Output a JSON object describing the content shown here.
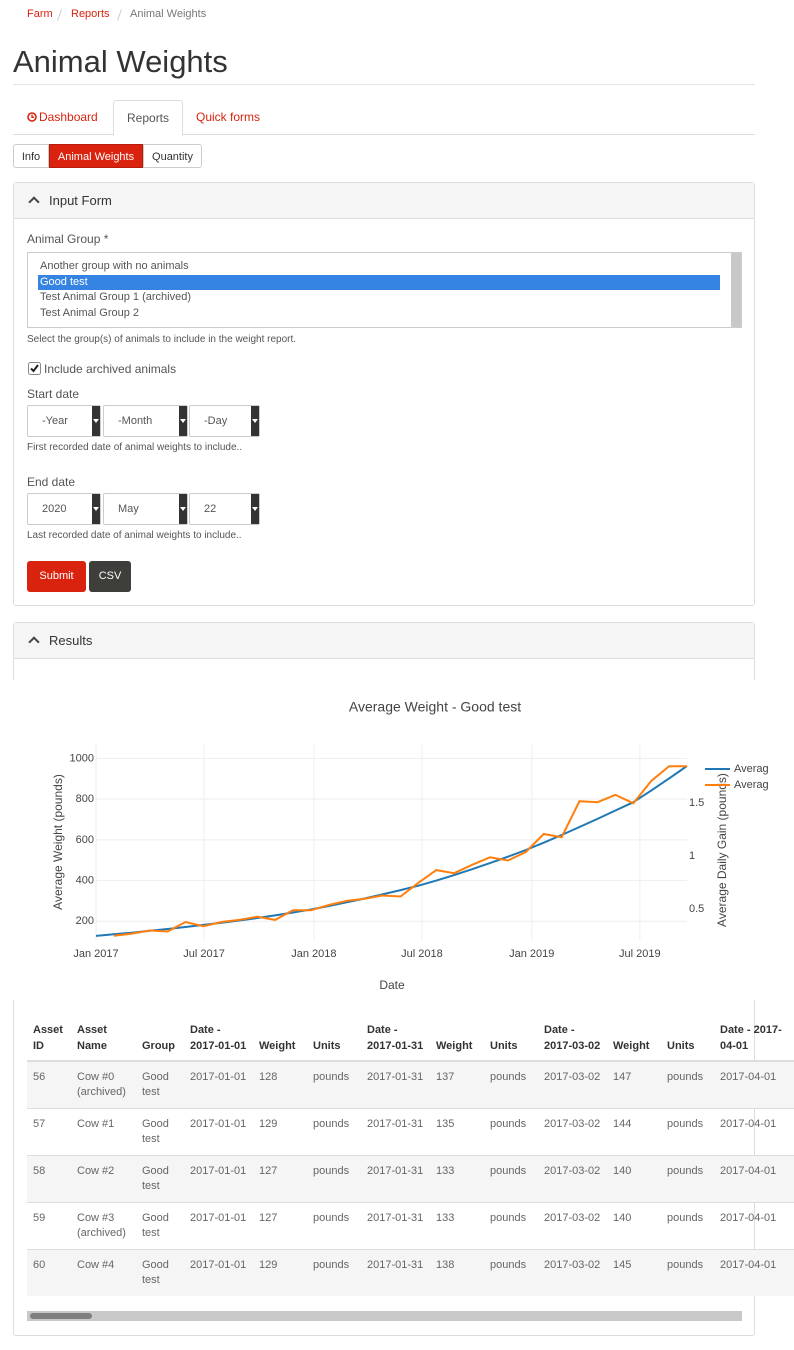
{
  "breadcrumb": [
    "Farm",
    "Reports",
    "Animal Weights"
  ],
  "title": "Animal Weights",
  "tabs": [
    "Dashboard",
    "Reports",
    "Quick forms"
  ],
  "subtabs": [
    "Info",
    "Animal Weights",
    "Quantity"
  ],
  "form": {
    "legend": "Input Form",
    "group_label": "Animal Group *",
    "group_options": [
      "Another group with no animals",
      "Good test",
      "Test Animal Group 1 (archived)",
      "Test Animal Group 2"
    ],
    "group_help": "Select the group(s) of animals to include in the weight report.",
    "archived_label": "Include archived animals",
    "start_label": "Start date",
    "start_selects": [
      "-Year",
      "-Month",
      "-Day"
    ],
    "start_help": "First recorded date of animal weights to include..",
    "end_label": "End date",
    "end_selects": [
      "2020",
      "May",
      "22"
    ],
    "end_help": "Last recorded date of animal weights to include..",
    "buttons": [
      "Submit",
      "CSV"
    ]
  },
  "results_legend": "Results",
  "chart_data": {
    "type": "line",
    "title": "Average Weight - Good test",
    "x_label": "Date",
    "y_label": "Average Weight (pounds)",
    "y2_label": "Average Daily Gain (pounds)",
    "x": [
      "2017-01-01",
      "2017-01-31",
      "2017-03-02",
      "2017-04-01",
      "2017-05-01",
      "2017-05-31",
      "2017-06-30",
      "2017-07-30",
      "2017-08-29",
      "2017-09-28",
      "2017-10-28",
      "2017-11-27",
      "2017-12-27",
      "2018-01-26",
      "2018-02-25",
      "2018-03-27",
      "2018-04-26",
      "2018-05-26",
      "2018-06-25",
      "2018-07-25",
      "2018-08-24",
      "2018-09-23",
      "2018-10-23",
      "2018-11-22",
      "2018-12-22",
      "2019-01-21",
      "2019-02-20",
      "2019-03-22",
      "2019-04-21",
      "2019-05-21",
      "2019-06-20",
      "2019-07-20",
      "2019-08-19",
      "2019-09-18"
    ],
    "series": [
      {
        "name": "Averag",
        "color": "#1f77b4",
        "values": [
          128,
          136,
          144,
          153,
          162,
          172,
          182,
          193,
          204,
          216,
          229,
          243,
          258,
          275,
          293,
          312,
          332,
          353,
          375,
          400,
          427,
          456,
          486,
          517,
          550,
          586,
          624,
          663,
          703,
          744,
          785,
          842,
          902,
          963
        ]
      },
      {
        "name": "Averag",
        "color": "#ff7f0e",
        "axis": "y2",
        "values": [
          null,
          0.25,
          0.27,
          0.3,
          0.29,
          0.38,
          0.34,
          0.38,
          0.4,
          0.43,
          0.4,
          0.49,
          0.49,
          0.54,
          0.58,
          0.6,
          0.63,
          0.62,
          0.75,
          0.87,
          0.84,
          0.92,
          0.99,
          0.96,
          1.04,
          1.21,
          1.18,
          1.52,
          1.51,
          1.58,
          1.5,
          1.71,
          1.85,
          1.85
        ]
      }
    ],
    "xlim": [
      "2017-01-01",
      "2019-09-18"
    ],
    "xticks": [
      {
        "value": "2017-01-01",
        "label": "Jan 2017"
      },
      {
        "value": "2017-07-01",
        "label": "Jul 2017"
      },
      {
        "value": "2018-01-01",
        "label": "Jan 2018"
      },
      {
        "value": "2018-07-01",
        "label": "Jul 2018"
      },
      {
        "value": "2019-01-01",
        "label": "Jan 2019"
      },
      {
        "value": "2019-07-01",
        "label": "Jul 2019"
      }
    ],
    "ylim": [
      108,
      1066
    ],
    "yticks": [
      200,
      400,
      600,
      800,
      1000
    ],
    "y2lim": [
      0.21,
      2.05
    ],
    "y2ticks": [
      0.5,
      1,
      1.5
    ],
    "grid": true
  },
  "table": {
    "headers": [
      "Asset ID",
      "Asset Name",
      "Group",
      "Date - 2017-01-01",
      "Weight",
      "Units",
      "Date - 2017-01-31",
      "Weight",
      "Units",
      "Date - 2017-03-02",
      "Weight",
      "Units",
      "Date - 2017-04-01"
    ],
    "rows": [
      [
        56,
        "Cow #0 (archived)",
        "Good test",
        "2017-01-01",
        128,
        "pounds",
        "2017-01-31",
        137,
        "pounds",
        "2017-03-02",
        147,
        "pounds",
        "2017-04-01"
      ],
      [
        57,
        "Cow #1",
        "Good test",
        "2017-01-01",
        129,
        "pounds",
        "2017-01-31",
        135,
        "pounds",
        "2017-03-02",
        144,
        "pounds",
        "2017-04-01"
      ],
      [
        58,
        "Cow #2",
        "Good test",
        "2017-01-01",
        127,
        "pounds",
        "2017-01-31",
        133,
        "pounds",
        "2017-03-02",
        140,
        "pounds",
        "2017-04-01"
      ],
      [
        59,
        "Cow #3 (archived)",
        "Good test",
        "2017-01-01",
        127,
        "pounds",
        "2017-01-31",
        133,
        "pounds",
        "2017-03-02",
        140,
        "pounds",
        "2017-04-01"
      ],
      [
        60,
        "Cow #4",
        "Good test",
        "2017-01-01",
        129,
        "pounds",
        "2017-01-31",
        138,
        "pounds",
        "2017-03-02",
        145,
        "pounds",
        "2017-04-01"
      ]
    ]
  }
}
